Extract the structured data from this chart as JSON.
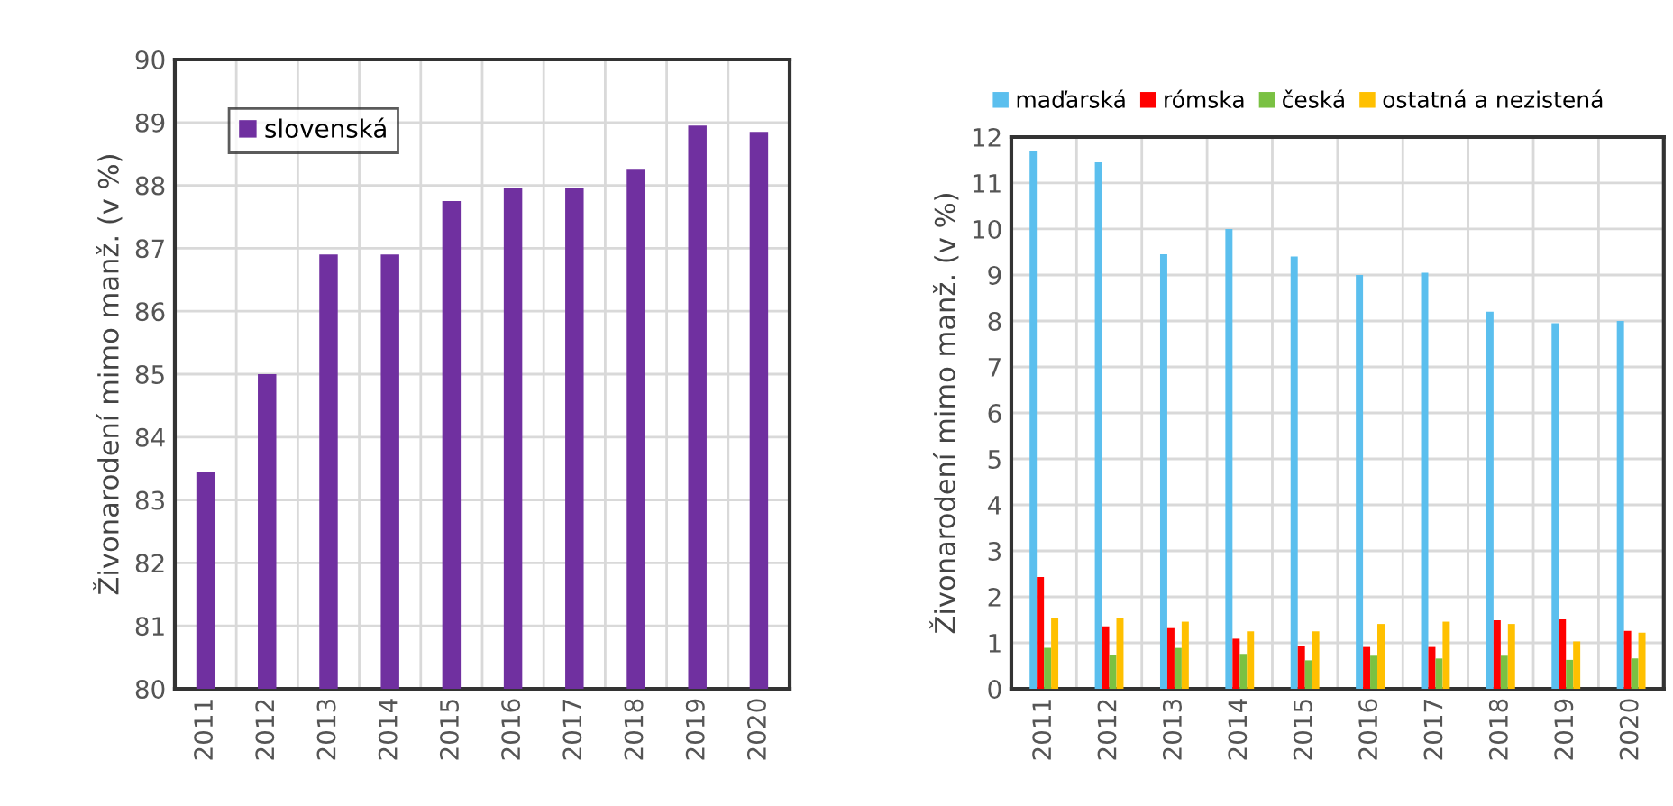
{
  "chart_data": [
    {
      "type": "bar",
      "categories": [
        "2011",
        "2012",
        "2013",
        "2014",
        "2015",
        "2016",
        "2017",
        "2018",
        "2019",
        "2020"
      ],
      "ylabel": "Živonarodení mimo manž. (v %)",
      "ylim": [
        80,
        90
      ],
      "yticks": [
        80,
        81,
        82,
        83,
        84,
        85,
        86,
        87,
        88,
        89,
        90
      ],
      "grid": true,
      "legend": "top left",
      "series": [
        {
          "name": "slovenská",
          "color": "#7030a0",
          "values": [
            83.45,
            85.0,
            86.9,
            86.9,
            87.75,
            87.95,
            87.95,
            88.25,
            88.95,
            88.85
          ]
        }
      ]
    },
    {
      "type": "bar",
      "categories": [
        "2011",
        "2012",
        "2013",
        "2014",
        "2015",
        "2016",
        "2017",
        "2018",
        "2019",
        "2020"
      ],
      "ylabel": "Živonarodení mimo manž. (v %)",
      "ylim": [
        0,
        12
      ],
      "yticks": [
        0,
        1,
        2,
        3,
        4,
        5,
        6,
        7,
        8,
        9,
        10,
        11,
        12
      ],
      "grid": true,
      "legend": "top",
      "series": [
        {
          "name": "maďarská",
          "color": "#5bbfee",
          "values": [
            11.7,
            11.45,
            9.45,
            10.0,
            9.4,
            9.0,
            9.05,
            8.2,
            7.95,
            8.0
          ]
        },
        {
          "name": "rómska",
          "color": "#ff0000",
          "values": [
            2.43,
            1.36,
            1.32,
            1.09,
            0.93,
            0.91,
            0.91,
            1.49,
            1.51,
            1.26
          ]
        },
        {
          "name": "česká",
          "color": "#7ac143",
          "values": [
            0.89,
            0.74,
            0.89,
            0.76,
            0.62,
            0.72,
            0.66,
            0.72,
            0.63,
            0.66
          ]
        },
        {
          "name": "ostatná a nezistená",
          "color": "#ffc000",
          "values": [
            1.55,
            1.53,
            1.46,
            1.25,
            1.25,
            1.41,
            1.46,
            1.41,
            1.03,
            1.22
          ]
        }
      ]
    }
  ]
}
